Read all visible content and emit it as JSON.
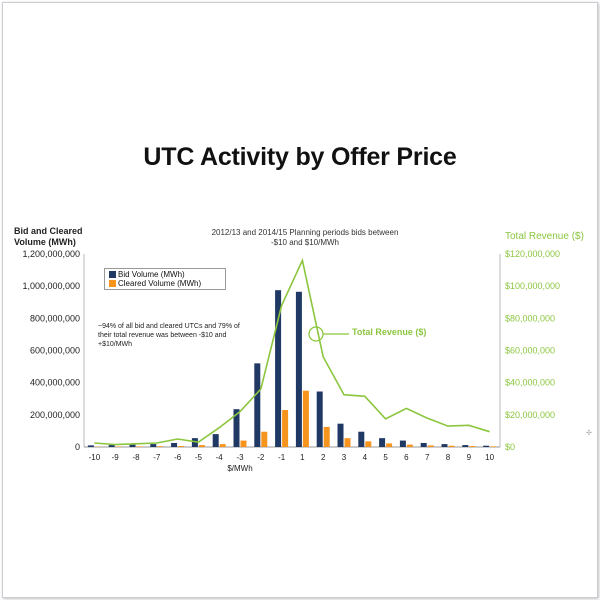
{
  "chart_data": {
    "type": "bar",
    "title": "UTC Activity by Offer Price",
    "subtitle": "2012/13 and 2014/15 Planning periods bids between -$10 and $10/MWh",
    "xlabel": "$/MWh",
    "ylabel": "Bid and Cleared Volume (MWh)",
    "y2label": "Total Revenue ($)",
    "categories": [
      "-10",
      "-9",
      "-8",
      "-7",
      "-6",
      "-5",
      "-4",
      "-3",
      "-2",
      "-1",
      "1",
      "2",
      "3",
      "4",
      "5",
      "6",
      "7",
      "8",
      "9",
      "10"
    ],
    "ylim": [
      0,
      1200000000
    ],
    "y2lim": [
      0,
      120000000
    ],
    "yticks": [
      "0",
      "200,000,000",
      "400,000,000",
      "600,000,000",
      "800,000,000",
      "1,000,000,000",
      "1,200,000,000"
    ],
    "y2ticks": [
      "$0",
      "$20,000,000",
      "$40,000,000",
      "$60,000,000",
      "$80,000,000",
      "$100,000,000",
      "$120,000,000"
    ],
    "series": [
      {
        "name": "Bid Volume (MWh)",
        "type": "bar",
        "axis": "left",
        "color": "#1f3864",
        "values": [
          10000000,
          12000000,
          15000000,
          18000000,
          25000000,
          55000000,
          80000000,
          235000000,
          520000000,
          975000000,
          965000000,
          345000000,
          145000000,
          95000000,
          55000000,
          40000000,
          25000000,
          18000000,
          12000000,
          8000000
        ]
      },
      {
        "name": "Cleared Volume (MWh)",
        "type": "bar",
        "axis": "left",
        "color": "#f7941d",
        "values": [
          2000000,
          3000000,
          4000000,
          5000000,
          6000000,
          12000000,
          18000000,
          40000000,
          95000000,
          230000000,
          350000000,
          125000000,
          55000000,
          35000000,
          22000000,
          15000000,
          10000000,
          8000000,
          6000000,
          4000000
        ]
      },
      {
        "name": "Total Revenue ($)",
        "type": "line",
        "axis": "right",
        "color": "#8cc63f",
        "values": [
          2500000,
          1500000,
          2000000,
          2500000,
          5000000,
          3000000,
          12000000,
          22000000,
          36000000,
          88000000,
          116000000,
          56000000,
          32500000,
          31500000,
          17500000,
          24000000,
          18000000,
          13000000,
          13500000,
          9500000
        ]
      }
    ],
    "annotations": [
      "~94% of all bid and cleared UTCs and 79% of their total revenue was between -$10 and +$10/MWh",
      "Total Revenue ($)"
    ],
    "legend": "top-left",
    "grid": false
  },
  "colors": {
    "bid": "#1f3864",
    "cleared": "#f7941d",
    "revenue": "#8cc63f"
  }
}
